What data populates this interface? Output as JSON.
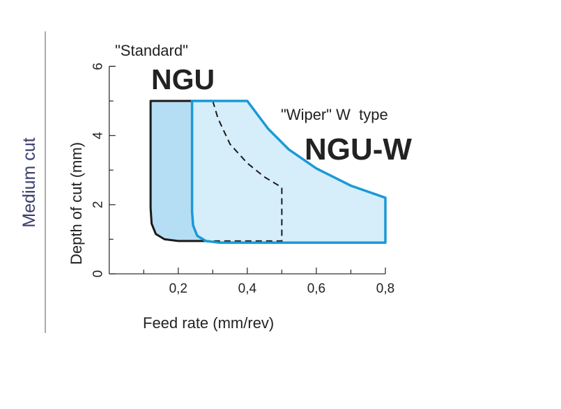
{
  "side_label": "Medium cut",
  "chart_data": {
    "type": "area",
    "xlabel": "Feed rate (mm/rev)",
    "ylabel": "Depth of cut (mm)",
    "xlim": [
      0,
      0.8
    ],
    "ylim": [
      0,
      6
    ],
    "x_ticks": [
      {
        "value": 0.2,
        "label": "0,2"
      },
      {
        "value": 0.4,
        "label": "0,4"
      },
      {
        "value": 0.6,
        "label": "0,6"
      },
      {
        "value": 0.8,
        "label": "0,8"
      }
    ],
    "y_ticks": [
      {
        "value": 0,
        "label": "0"
      },
      {
        "value": 2,
        "label": "2"
      },
      {
        "value": 4,
        "label": "4"
      },
      {
        "value": 6,
        "label": "6"
      }
    ],
    "x_minor_ticks": [
      0.1,
      0.3,
      0.5,
      0.7
    ],
    "y_minor_ticks": [
      1,
      3,
      5
    ],
    "grid": false,
    "series": [
      {
        "name": "NGU",
        "caption": "\"Standard\"",
        "fill": "#b5ddf4",
        "stroke": "#1a1a1a",
        "outline": [
          [
            0.3,
            5
          ],
          [
            0.12,
            5
          ],
          [
            0.12,
            1.9
          ],
          [
            0.123,
            1.45
          ],
          [
            0.135,
            1.15
          ],
          [
            0.16,
            1.0
          ],
          [
            0.2,
            0.95
          ],
          [
            0.28,
            0.95
          ]
        ],
        "dashed_outline": [
          [
            0.3,
            5
          ],
          [
            0.315,
            4.5
          ],
          [
            0.35,
            3.75
          ],
          [
            0.4,
            3.2
          ],
          [
            0.45,
            2.8
          ],
          [
            0.5,
            2.5
          ],
          [
            0.5,
            0.95
          ],
          [
            0.28,
            0.95
          ]
        ]
      },
      {
        "name": "NGU-W",
        "caption": "\"Wiper\" W  type",
        "fill": "#d6edfa",
        "stroke": "#1a9ad6",
        "outline": [
          [
            0.24,
            5
          ],
          [
            0.4,
            5
          ],
          [
            0.46,
            4.2
          ],
          [
            0.52,
            3.6
          ],
          [
            0.6,
            3.05
          ],
          [
            0.7,
            2.55
          ],
          [
            0.8,
            2.2
          ],
          [
            0.8,
            0.9
          ],
          [
            0.32,
            0.9
          ],
          [
            0.28,
            0.95
          ],
          [
            0.255,
            1.1
          ],
          [
            0.243,
            1.4
          ],
          [
            0.24,
            1.8
          ],
          [
            0.24,
            5
          ]
        ]
      }
    ]
  }
}
